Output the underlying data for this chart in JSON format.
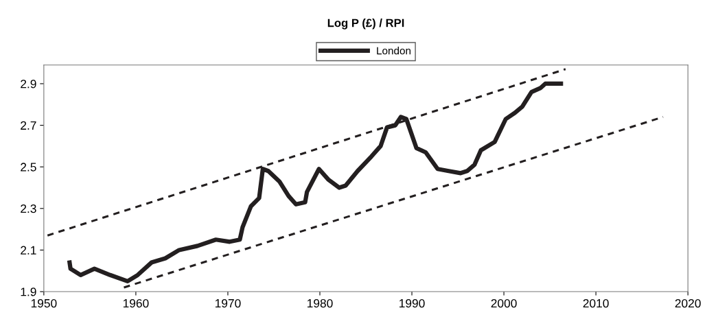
{
  "chart_data": {
    "type": "line",
    "title": "Log P (£) / RPI",
    "xlim": [
      1950,
      2020
    ],
    "xticks": [
      1950,
      1960,
      1970,
      1980,
      1990,
      2000,
      2010,
      2020
    ],
    "ylim": [
      1.9,
      2.99
    ],
    "yticks": [
      1.9,
      2.1,
      2.3,
      2.5,
      2.7,
      2.9
    ],
    "grid": false,
    "legend": "top",
    "marker": "none",
    "series": [
      {
        "name": "London",
        "color": "#231f20",
        "line_style": "solid",
        "x": [
          1952.8,
          1952.9,
          1954.0,
          1955.5,
          1957.2,
          1959.1,
          1960.2,
          1961.7,
          1963.2,
          1964.7,
          1966.7,
          1968.7,
          1970.2,
          1971.3,
          1971.6,
          1972.5,
          1973.4,
          1973.8,
          1974.4,
          1975.6,
          1976.6,
          1977.4,
          1978.4,
          1978.6,
          1979.9,
          1980.9,
          1982.1,
          1982.8,
          1984.1,
          1985.6,
          1986.6,
          1987.3,
          1988.2,
          1988.8,
          1989.4,
          1990.5,
          1991.5,
          1992.8,
          1994.0,
          1995.3,
          1996.0,
          1996.8,
          1997.5,
          1999.0,
          2000.2,
          2001.2,
          2002.0,
          2003.0,
          2004.0,
          2004.5,
          2005.2,
          2006.2
        ],
        "values": [
          2.04,
          2.01,
          1.98,
          2.01,
          1.98,
          1.95,
          1.98,
          2.04,
          2.06,
          2.1,
          2.12,
          2.15,
          2.14,
          2.15,
          2.21,
          2.31,
          2.35,
          2.49,
          2.48,
          2.43,
          2.36,
          2.32,
          2.33,
          2.38,
          2.49,
          2.44,
          2.4,
          2.41,
          2.48,
          2.55,
          2.6,
          2.69,
          2.7,
          2.74,
          2.73,
          2.59,
          2.57,
          2.49,
          2.48,
          2.47,
          2.48,
          2.51,
          2.58,
          2.62,
          2.73,
          2.76,
          2.79,
          2.86,
          2.88,
          2.9,
          2.9,
          2.9
        ]
      },
      {
        "color": "#231f20",
        "line_style": "dashed",
        "x": [
          1950.4,
          2006.7
        ],
        "values": [
          2.17,
          2.97
        ]
      },
      {
        "color": "#231f20",
        "line_style": "dashed",
        "x": [
          1958.7,
          2017.3
        ],
        "values": [
          1.92,
          2.74
        ]
      }
    ]
  }
}
